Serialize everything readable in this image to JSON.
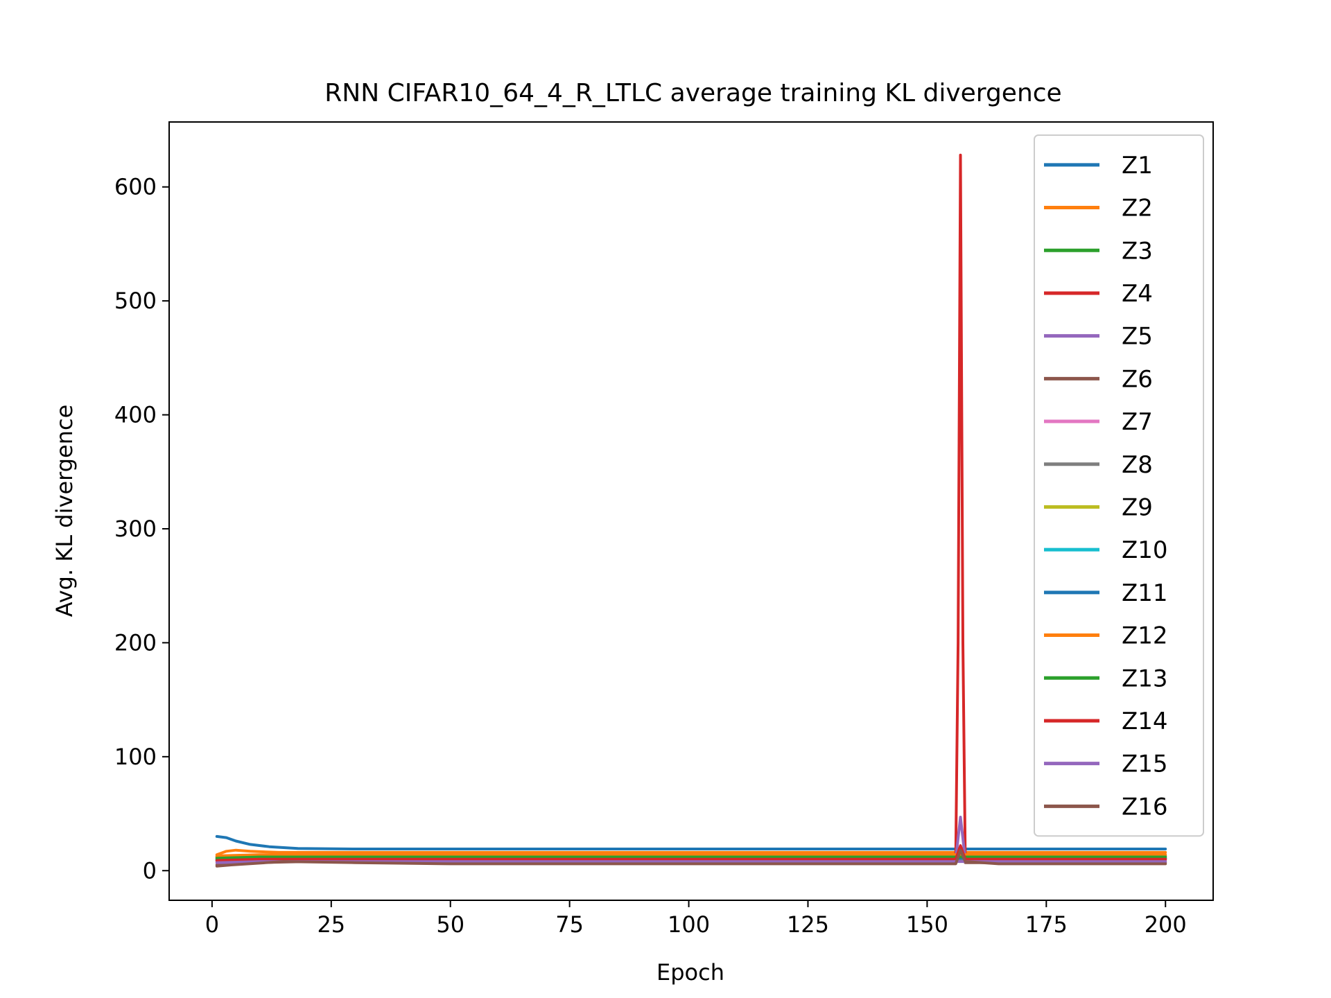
{
  "chart_data": {
    "type": "line",
    "title": "RNN CIFAR10_64_4_R_LTLC average training KL divergence",
    "xlabel": "Epoch",
    "ylabel": "Avg. KL divergence",
    "xlim": [
      -9,
      210
    ],
    "ylim": [
      -26,
      657
    ],
    "xticks": [
      0,
      25,
      50,
      75,
      100,
      125,
      150,
      175,
      200
    ],
    "yticks": [
      0,
      100,
      200,
      300,
      400,
      500,
      600
    ],
    "xtick_labels": [
      "0",
      "25",
      "50",
      "75",
      "100",
      "125",
      "150",
      "175",
      "200"
    ],
    "ytick_labels": [
      "0",
      "100",
      "200",
      "300",
      "400",
      "500",
      "600"
    ],
    "grid": false,
    "legend_position": "upper-right",
    "series": [
      {
        "name": "Z1",
        "color": "#1f77b4",
        "points": [
          [
            1,
            30
          ],
          [
            3,
            29
          ],
          [
            5,
            26
          ],
          [
            8,
            23
          ],
          [
            12,
            21
          ],
          [
            18,
            19.5
          ],
          [
            30,
            19
          ],
          [
            200,
            19
          ]
        ]
      },
      {
        "name": "Z2",
        "color": "#ff7f0e",
        "points": [
          [
            1,
            14
          ],
          [
            3,
            17
          ],
          [
            5,
            18
          ],
          [
            8,
            17
          ],
          [
            14,
            16
          ],
          [
            30,
            16
          ],
          [
            200,
            16
          ]
        ]
      },
      {
        "name": "Z3",
        "color": "#2ca02c",
        "points": [
          [
            1,
            12
          ],
          [
            4,
            13
          ],
          [
            10,
            13
          ],
          [
            200,
            13
          ]
        ]
      },
      {
        "name": "Z4",
        "color": "#d62728",
        "points": [
          [
            1,
            12
          ],
          [
            5,
            12
          ],
          [
            156,
            12
          ],
          [
            156.5,
            200
          ],
          [
            157,
            628
          ],
          [
            157.5,
            200
          ],
          [
            158,
            12
          ],
          [
            200,
            12
          ]
        ]
      },
      {
        "name": "Z5",
        "color": "#9467bd",
        "points": [
          [
            1,
            9
          ],
          [
            10,
            10
          ],
          [
            156,
            10
          ],
          [
            157,
            47
          ],
          [
            158,
            10
          ],
          [
            200,
            10
          ]
        ]
      },
      {
        "name": "Z6",
        "color": "#8c564b",
        "points": [
          [
            1,
            5
          ],
          [
            3,
            6
          ],
          [
            10,
            7
          ],
          [
            20,
            8
          ],
          [
            40,
            7
          ],
          [
            156,
            7
          ],
          [
            157,
            20
          ],
          [
            158,
            7
          ],
          [
            200,
            7
          ]
        ]
      },
      {
        "name": "Z7",
        "color": "#e377c2",
        "points": [
          [
            1,
            8
          ],
          [
            10,
            9
          ],
          [
            200,
            9
          ]
        ]
      },
      {
        "name": "Z8",
        "color": "#7f7f7f",
        "points": [
          [
            1,
            9
          ],
          [
            10,
            10
          ],
          [
            200,
            10
          ]
        ]
      },
      {
        "name": "Z9",
        "color": "#bcbd22",
        "points": [
          [
            1,
            11
          ],
          [
            10,
            11
          ],
          [
            200,
            11
          ]
        ]
      },
      {
        "name": "Z10",
        "color": "#17becf",
        "points": [
          [
            1,
            10
          ],
          [
            10,
            11
          ],
          [
            200,
            11
          ]
        ]
      },
      {
        "name": "Z11",
        "color": "#1f77b4",
        "points": [
          [
            1,
            10
          ],
          [
            10,
            11
          ],
          [
            200,
            11
          ]
        ]
      },
      {
        "name": "Z12",
        "color": "#ff7f0e",
        "points": [
          [
            1,
            13
          ],
          [
            10,
            14
          ],
          [
            200,
            14
          ]
        ]
      },
      {
        "name": "Z13",
        "color": "#2ca02c",
        "points": [
          [
            1,
            11
          ],
          [
            10,
            12
          ],
          [
            200,
            12
          ]
        ]
      },
      {
        "name": "Z14",
        "color": "#d62728",
        "points": [
          [
            1,
            9
          ],
          [
            10,
            10
          ],
          [
            156,
            10
          ],
          [
            157,
            22
          ],
          [
            158,
            10
          ],
          [
            200,
            10
          ]
        ]
      },
      {
        "name": "Z15",
        "color": "#9467bd",
        "points": [
          [
            1,
            7
          ],
          [
            10,
            8
          ],
          [
            200,
            8
          ]
        ]
      },
      {
        "name": "Z16",
        "color": "#8c564b",
        "points": [
          [
            1,
            4
          ],
          [
            4,
            5
          ],
          [
            15,
            8
          ],
          [
            30,
            7
          ],
          [
            50,
            6
          ],
          [
            156,
            6
          ],
          [
            157,
            18
          ],
          [
            158,
            8
          ],
          [
            165,
            6
          ],
          [
            200,
            6
          ]
        ]
      }
    ]
  }
}
